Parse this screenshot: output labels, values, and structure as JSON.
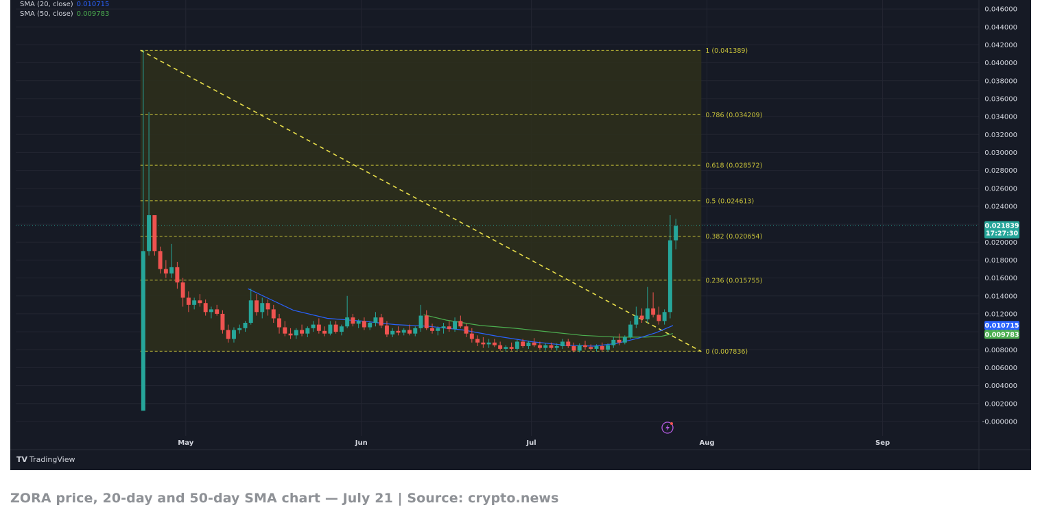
{
  "legend": [
    {
      "label": "SMA (20, close)",
      "value": "0.010715",
      "color": "#2962ff"
    },
    {
      "label": "SMA (50, close)",
      "value": "0.009783",
      "color": "#4caf50"
    }
  ],
  "watermark": "TradingView",
  "caption": "ZORA price, 20-day and 50-day SMA chart — July 21 | Source: crypto.news",
  "badges": {
    "price": "0.021839",
    "countdown": "17:27:30",
    "sma20": "0.010715",
    "sma50": "0.009783"
  },
  "colors": {
    "background": "#161a25",
    "grid": "#232632",
    "up": "#26a69a",
    "down": "#ef5350",
    "fib": "#c8c23a",
    "fib_fill": "#2c2f1c",
    "sma20": "#2962ff",
    "sma50": "#4caf50",
    "axis_text": "#d1d4dc"
  },
  "chart_data": {
    "type": "candlestick",
    "y_axis": {
      "min": -0.001,
      "max": 0.047,
      "ticks": [
        "0.046000",
        "0.044000",
        "0.042000",
        "0.040000",
        "0.038000",
        "0.036000",
        "0.034000",
        "0.032000",
        "0.030000",
        "0.028000",
        "0.026000",
        "0.024000",
        "0.022000",
        "0.020000",
        "0.018000",
        "0.016000",
        "0.014000",
        "0.012000",
        "0.010000",
        "0.008000",
        "0.006000",
        "0.004000",
        "0.002000",
        "-0.000000"
      ]
    },
    "x_axis": {
      "start": "2025-04-01",
      "end": "2025-09-18",
      "labels": [
        {
          "date": "2025-05-01",
          "label": "May"
        },
        {
          "date": "2025-06-01",
          "label": "Jun"
        },
        {
          "date": "2025-07-01",
          "label": "Jul"
        },
        {
          "date": "2025-08-01",
          "label": "Aug"
        },
        {
          "date": "2025-09-01",
          "label": "Sep"
        }
      ]
    },
    "fibonacci": {
      "start_date": "2025-04-23",
      "end_date": "2025-07-31",
      "levels": [
        {
          "ratio": "1",
          "price": 0.041389,
          "label": "1 (0.041389)"
        },
        {
          "ratio": "0.786",
          "price": 0.034209,
          "label": "0.786 (0.034209)"
        },
        {
          "ratio": "0.618",
          "price": 0.028572,
          "label": "0.618 (0.028572)"
        },
        {
          "ratio": "0.5",
          "price": 0.024613,
          "label": "0.5 (0.024613)"
        },
        {
          "ratio": "0.382",
          "price": 0.020654,
          "label": "0.382 (0.020654)"
        },
        {
          "ratio": "0.236",
          "price": 0.015755,
          "label": "0.236 (0.015755)"
        },
        {
          "ratio": "0",
          "price": 0.007836,
          "label": "0 (0.007836)"
        }
      ]
    },
    "trendline": {
      "from": [
        "2025-04-23",
        0.0414
      ],
      "to": [
        "2025-07-31",
        0.0078
      ]
    },
    "current_price": 0.021839,
    "candles": [
      [
        "2025-04-23",
        0.0012,
        0.0414,
        0.0012,
        0.019
      ],
      [
        "2025-04-24",
        0.019,
        0.0345,
        0.0185,
        0.023
      ],
      [
        "2025-04-25",
        0.023,
        0.023,
        0.0185,
        0.019
      ],
      [
        "2025-04-26",
        0.019,
        0.0195,
        0.0165,
        0.017
      ],
      [
        "2025-04-27",
        0.017,
        0.018,
        0.016,
        0.0165
      ],
      [
        "2025-04-28",
        0.0165,
        0.0198,
        0.016,
        0.0172
      ],
      [
        "2025-04-29",
        0.0172,
        0.0178,
        0.0148,
        0.0155
      ],
      [
        "2025-04-30",
        0.0155,
        0.016,
        0.0128,
        0.0138
      ],
      [
        "2025-05-01",
        0.0138,
        0.0145,
        0.0122,
        0.013
      ],
      [
        "2025-05-02",
        0.013,
        0.0138,
        0.0125,
        0.0135
      ],
      [
        "2025-05-03",
        0.0135,
        0.0142,
        0.0128,
        0.0132
      ],
      [
        "2025-05-04",
        0.0132,
        0.0136,
        0.0118,
        0.0122
      ],
      [
        "2025-05-05",
        0.0122,
        0.0128,
        0.0115,
        0.0125
      ],
      [
        "2025-05-06",
        0.0125,
        0.013,
        0.0118,
        0.012
      ],
      [
        "2025-05-07",
        0.012,
        0.0124,
        0.0098,
        0.0102
      ],
      [
        "2025-05-08",
        0.0102,
        0.0108,
        0.0088,
        0.0092
      ],
      [
        "2025-05-09",
        0.0092,
        0.0105,
        0.0088,
        0.0102
      ],
      [
        "2025-05-10",
        0.0102,
        0.0108,
        0.0098,
        0.0104
      ],
      [
        "2025-05-11",
        0.0104,
        0.0112,
        0.01,
        0.011
      ],
      [
        "2025-05-12",
        0.011,
        0.0148,
        0.0108,
        0.0135
      ],
      [
        "2025-05-13",
        0.0135,
        0.0142,
        0.0118,
        0.0122
      ],
      [
        "2025-05-14",
        0.0122,
        0.0138,
        0.0115,
        0.0132
      ],
      [
        "2025-05-15",
        0.0132,
        0.0136,
        0.0118,
        0.0125
      ],
      [
        "2025-05-16",
        0.0125,
        0.013,
        0.011,
        0.0115
      ],
      [
        "2025-05-17",
        0.0115,
        0.012,
        0.0098,
        0.0105
      ],
      [
        "2025-05-18",
        0.0105,
        0.0112,
        0.0095,
        0.0098
      ],
      [
        "2025-05-19",
        0.0098,
        0.0104,
        0.0092,
        0.0096
      ],
      [
        "2025-05-20",
        0.0096,
        0.0104,
        0.0092,
        0.0102
      ],
      [
        "2025-05-21",
        0.0102,
        0.0108,
        0.0095,
        0.0098
      ],
      [
        "2025-05-22",
        0.0098,
        0.0106,
        0.0094,
        0.0104
      ],
      [
        "2025-05-23",
        0.0104,
        0.0112,
        0.01,
        0.0108
      ],
      [
        "2025-05-24",
        0.0108,
        0.0115,
        0.0098,
        0.0101
      ],
      [
        "2025-05-25",
        0.0101,
        0.0106,
        0.0095,
        0.0098
      ],
      [
        "2025-05-26",
        0.0098,
        0.0112,
        0.0096,
        0.0108
      ],
      [
        "2025-05-27",
        0.0108,
        0.0112,
        0.0098,
        0.01
      ],
      [
        "2025-05-28",
        0.01,
        0.0108,
        0.0096,
        0.0106
      ],
      [
        "2025-05-29",
        0.0106,
        0.014,
        0.0104,
        0.0116
      ],
      [
        "2025-05-30",
        0.0116,
        0.012,
        0.0106,
        0.0109
      ],
      [
        "2025-05-31",
        0.0109,
        0.0114,
        0.0104,
        0.0112
      ],
      [
        "2025-06-01",
        0.0112,
        0.0116,
        0.0102,
        0.0105
      ],
      [
        "2025-06-02",
        0.0105,
        0.0112,
        0.0102,
        0.011
      ],
      [
        "2025-06-03",
        0.011,
        0.0122,
        0.0106,
        0.0116
      ],
      [
        "2025-06-04",
        0.0116,
        0.012,
        0.0104,
        0.0107
      ],
      [
        "2025-06-05",
        0.0107,
        0.0112,
        0.0094,
        0.0097
      ],
      [
        "2025-06-06",
        0.0097,
        0.0104,
        0.0094,
        0.0101
      ],
      [
        "2025-06-07",
        0.0101,
        0.0106,
        0.0096,
        0.0099
      ],
      [
        "2025-06-08",
        0.0099,
        0.0104,
        0.0096,
        0.0102
      ],
      [
        "2025-06-09",
        0.0102,
        0.0108,
        0.0096,
        0.0098
      ],
      [
        "2025-06-10",
        0.0098,
        0.0106,
        0.0095,
        0.0104
      ],
      [
        "2025-06-11",
        0.0104,
        0.013,
        0.01,
        0.0118
      ],
      [
        "2025-06-12",
        0.0118,
        0.0124,
        0.0102,
        0.0104
      ],
      [
        "2025-06-13",
        0.0104,
        0.0109,
        0.0098,
        0.0101
      ],
      [
        "2025-06-14",
        0.0101,
        0.0106,
        0.0096,
        0.0104
      ],
      [
        "2025-06-15",
        0.0104,
        0.011,
        0.0098,
        0.0106
      ],
      [
        "2025-06-16",
        0.0106,
        0.0112,
        0.01,
        0.0103
      ],
      [
        "2025-06-17",
        0.0103,
        0.0116,
        0.01,
        0.0112
      ],
      [
        "2025-06-18",
        0.0112,
        0.0118,
        0.0104,
        0.0106
      ],
      [
        "2025-06-19",
        0.0106,
        0.0109,
        0.0094,
        0.0098
      ],
      [
        "2025-06-20",
        0.0098,
        0.0104,
        0.0088,
        0.0092
      ],
      [
        "2025-06-21",
        0.0092,
        0.0096,
        0.0084,
        0.0088
      ],
      [
        "2025-06-22",
        0.0088,
        0.0094,
        0.0082,
        0.0086
      ],
      [
        "2025-06-23",
        0.0086,
        0.0092,
        0.0082,
        0.0088
      ],
      [
        "2025-06-24",
        0.0088,
        0.0092,
        0.0083,
        0.0085
      ],
      [
        "2025-06-25",
        0.0085,
        0.0089,
        0.0079,
        0.0081
      ],
      [
        "2025-06-26",
        0.0081,
        0.0085,
        0.0078,
        0.0083
      ],
      [
        "2025-06-27",
        0.0083,
        0.0088,
        0.0079,
        0.0081
      ],
      [
        "2025-06-28",
        0.0081,
        0.0091,
        0.0079,
        0.0089
      ],
      [
        "2025-06-29",
        0.0089,
        0.0092,
        0.0082,
        0.0084
      ],
      [
        "2025-06-30",
        0.0084,
        0.009,
        0.0081,
        0.0088
      ],
      [
        "2025-07-01",
        0.0088,
        0.0093,
        0.0083,
        0.0085
      ],
      [
        "2025-07-02",
        0.0085,
        0.0089,
        0.008,
        0.0082
      ],
      [
        "2025-07-03",
        0.0082,
        0.0087,
        0.0079,
        0.0085
      ],
      [
        "2025-07-04",
        0.0085,
        0.0088,
        0.008,
        0.0082
      ],
      [
        "2025-07-05",
        0.0082,
        0.0087,
        0.0079,
        0.0084
      ],
      [
        "2025-07-06",
        0.0084,
        0.0092,
        0.0081,
        0.0089
      ],
      [
        "2025-07-07",
        0.0089,
        0.0092,
        0.0082,
        0.0084
      ],
      [
        "2025-07-08",
        0.0084,
        0.0088,
        0.0077,
        0.0079
      ],
      [
        "2025-07-09",
        0.0079,
        0.0087,
        0.0077,
        0.0085
      ],
      [
        "2025-07-10",
        0.0085,
        0.009,
        0.008,
        0.0083
      ],
      [
        "2025-07-11",
        0.0083,
        0.0086,
        0.0079,
        0.0081
      ],
      [
        "2025-07-12",
        0.0081,
        0.0086,
        0.0078,
        0.0084
      ],
      [
        "2025-07-13",
        0.0084,
        0.0088,
        0.0078,
        0.008
      ],
      [
        "2025-07-14",
        0.008,
        0.0087,
        0.0078,
        0.0085
      ],
      [
        "2025-07-15",
        0.0085,
        0.0094,
        0.0082,
        0.0091
      ],
      [
        "2025-07-16",
        0.0091,
        0.0098,
        0.0085,
        0.0088
      ],
      [
        "2025-07-17",
        0.0088,
        0.0096,
        0.0086,
        0.0094
      ],
      [
        "2025-07-18",
        0.0094,
        0.0112,
        0.0092,
        0.0108
      ],
      [
        "2025-07-19",
        0.0108,
        0.0128,
        0.0104,
        0.0118
      ],
      [
        "2025-07-20",
        0.0118,
        0.0126,
        0.011,
        0.0114
      ],
      [
        "2025-07-21",
        0.0114,
        0.015,
        0.011,
        0.0126
      ],
      [
        "2025-07-22",
        0.0126,
        0.0144,
        0.0116,
        0.0119
      ],
      [
        "2025-07-23",
        0.0119,
        0.0128,
        0.0108,
        0.0112
      ],
      [
        "2025-07-24",
        0.0112,
        0.0125,
        0.0108,
        0.0122
      ],
      [
        "2025-07-25",
        0.0122,
        0.023,
        0.0115,
        0.0202
      ],
      [
        "2025-07-26",
        0.0202,
        0.0226,
        0.0192,
        0.0218
      ]
    ],
    "sma20": [
      [
        "2025-05-12",
        0.0148
      ],
      [
        "2025-05-16",
        0.0136
      ],
      [
        "2025-05-20",
        0.0124
      ],
      [
        "2025-05-26",
        0.0115
      ],
      [
        "2025-06-01",
        0.0112
      ],
      [
        "2025-06-07",
        0.0108
      ],
      [
        "2025-06-13",
        0.0106
      ],
      [
        "2025-06-19",
        0.0102
      ],
      [
        "2025-06-25",
        0.0095
      ],
      [
        "2025-07-01",
        0.0089
      ],
      [
        "2025-07-07",
        0.0085
      ],
      [
        "2025-07-12",
        0.0084
      ],
      [
        "2025-07-16",
        0.0087
      ],
      [
        "2025-07-20",
        0.0093
      ],
      [
        "2025-07-23",
        0.0099
      ],
      [
        "2025-07-26",
        0.0107
      ]
    ],
    "sma50": [
      [
        "2025-06-12",
        0.0119
      ],
      [
        "2025-06-16",
        0.0113
      ],
      [
        "2025-06-22",
        0.0107
      ],
      [
        "2025-06-28",
        0.0104
      ],
      [
        "2025-07-04",
        0.01
      ],
      [
        "2025-07-10",
        0.0096
      ],
      [
        "2025-07-16",
        0.0094
      ],
      [
        "2025-07-21",
        0.0094
      ],
      [
        "2025-07-24",
        0.0095
      ],
      [
        "2025-07-26",
        0.0098
      ]
    ]
  }
}
